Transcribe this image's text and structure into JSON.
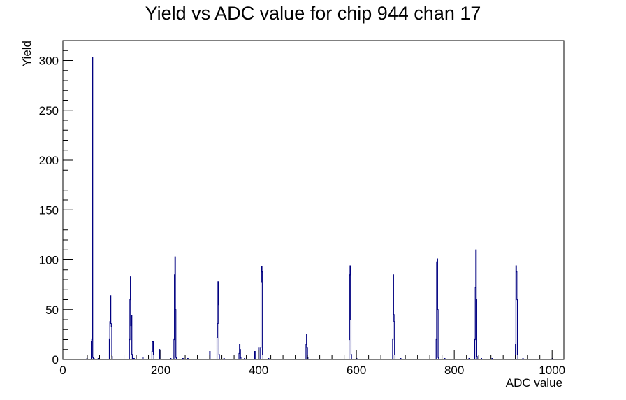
{
  "chart_data": {
    "type": "bar",
    "title": "Yield vs ADC value for chip 944 chan 17",
    "xlabel": "ADC value",
    "ylabel": "Yield",
    "xlim": [
      0,
      1024
    ],
    "ylim": [
      0,
      320
    ],
    "x_ticks": [
      0,
      200,
      400,
      600,
      800,
      1000
    ],
    "y_ticks": [
      0,
      50,
      100,
      150,
      200,
      250,
      300
    ],
    "grid": false,
    "legend": "none",
    "line_color": "#000080",
    "series": [
      {
        "bins": [
          [
            49,
            1
          ],
          [
            58,
            18
          ],
          [
            59,
            20
          ],
          [
            60,
            303
          ],
          [
            61,
            2
          ],
          [
            63,
            1
          ],
          [
            72,
            1
          ],
          [
            95,
            20
          ],
          [
            96,
            38
          ],
          [
            97,
            64
          ],
          [
            98,
            36
          ],
          [
            99,
            33
          ],
          [
            100,
            3
          ],
          [
            136,
            20
          ],
          [
            137,
            60
          ],
          [
            138,
            83
          ],
          [
            139,
            34
          ],
          [
            140,
            44
          ],
          [
            141,
            5
          ],
          [
            145,
            1
          ],
          [
            163,
            2
          ],
          [
            182,
            8
          ],
          [
            183,
            18
          ],
          [
            184,
            18
          ],
          [
            185,
            5
          ],
          [
            197,
            10
          ],
          [
            220,
            1
          ],
          [
            227,
            20
          ],
          [
            228,
            85
          ],
          [
            229,
            103
          ],
          [
            230,
            50
          ],
          [
            231,
            2
          ],
          [
            245,
            1
          ],
          [
            255,
            1
          ],
          [
            300,
            8
          ],
          [
            315,
            22
          ],
          [
            316,
            36
          ],
          [
            317,
            78
          ],
          [
            318,
            55
          ],
          [
            319,
            5
          ],
          [
            329,
            1
          ],
          [
            360,
            6
          ],
          [
            361,
            15
          ],
          [
            362,
            10
          ],
          [
            363,
            2
          ],
          [
            371,
            1
          ],
          [
            392,
            8
          ],
          [
            400,
            12
          ],
          [
            404,
            12
          ],
          [
            405,
            78
          ],
          [
            406,
            93
          ],
          [
            407,
            88
          ],
          [
            408,
            5
          ],
          [
            420,
            1
          ],
          [
            497,
            15
          ],
          [
            498,
            25
          ],
          [
            499,
            12
          ],
          [
            500,
            2
          ],
          [
            585,
            20
          ],
          [
            586,
            85
          ],
          [
            587,
            94
          ],
          [
            588,
            40
          ],
          [
            589,
            5
          ],
          [
            600,
            1
          ],
          [
            674,
            20
          ],
          [
            675,
            85
          ],
          [
            676,
            45
          ],
          [
            677,
            38
          ],
          [
            678,
            5
          ],
          [
            690,
            1
          ],
          [
            763,
            20
          ],
          [
            764,
            98
          ],
          [
            765,
            101
          ],
          [
            766,
            50
          ],
          [
            767,
            2
          ],
          [
            780,
            1
          ],
          [
            830,
            1
          ],
          [
            842,
            20
          ],
          [
            843,
            72
          ],
          [
            844,
            110
          ],
          [
            845,
            60
          ],
          [
            846,
            3
          ],
          [
            855,
            1
          ],
          [
            877,
            1
          ],
          [
            925,
            15
          ],
          [
            926,
            94
          ],
          [
            927,
            88
          ],
          [
            928,
            60
          ],
          [
            929,
            5
          ],
          [
            940,
            1
          ],
          [
            1000,
            1
          ]
        ]
      }
    ]
  }
}
